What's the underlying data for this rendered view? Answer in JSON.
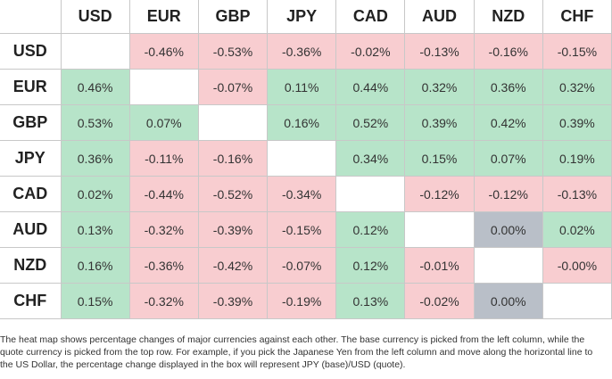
{
  "table": {
    "columns": [
      "USD",
      "EUR",
      "GBP",
      "JPY",
      "CAD",
      "AUD",
      "NZD",
      "CHF"
    ],
    "rows": [
      {
        "label": "USD",
        "cells": [
          null,
          "-0.46%",
          "-0.53%",
          "-0.36%",
          "-0.02%",
          "-0.13%",
          "-0.16%",
          "-0.15%"
        ]
      },
      {
        "label": "EUR",
        "cells": [
          "0.46%",
          null,
          "-0.07%",
          "0.11%",
          "0.44%",
          "0.32%",
          "0.36%",
          "0.32%"
        ]
      },
      {
        "label": "GBP",
        "cells": [
          "0.53%",
          "0.07%",
          null,
          "0.16%",
          "0.52%",
          "0.39%",
          "0.42%",
          "0.39%"
        ]
      },
      {
        "label": "JPY",
        "cells": [
          "0.36%",
          "-0.11%",
          "-0.16%",
          null,
          "0.34%",
          "0.15%",
          "0.07%",
          "0.19%"
        ]
      },
      {
        "label": "CAD",
        "cells": [
          "0.02%",
          "-0.44%",
          "-0.52%",
          "-0.34%",
          null,
          "-0.12%",
          "-0.12%",
          "-0.13%"
        ]
      },
      {
        "label": "AUD",
        "cells": [
          "0.13%",
          "-0.32%",
          "-0.39%",
          "-0.15%",
          "0.12%",
          null,
          "0.00%",
          "0.02%"
        ]
      },
      {
        "label": "NZD",
        "cells": [
          "0.16%",
          "-0.36%",
          "-0.42%",
          "-0.07%",
          "0.12%",
          "-0.01%",
          null,
          "-0.00%"
        ]
      },
      {
        "label": "CHF",
        "cells": [
          "0.15%",
          "-0.32%",
          "-0.39%",
          "-0.19%",
          "0.13%",
          "-0.02%",
          "0.00%",
          null
        ]
      }
    ]
  },
  "footer": "The heat map shows percentage changes of major currencies against each other. The base currency is picked from the left column, while the quote currency is picked from the top row. For example, if you pick the Japanese Yen from the left column and move along the horizontal line to the US Dollar, the percentage change displayed in the box will represent JPY (base)/USD (quote)."
}
